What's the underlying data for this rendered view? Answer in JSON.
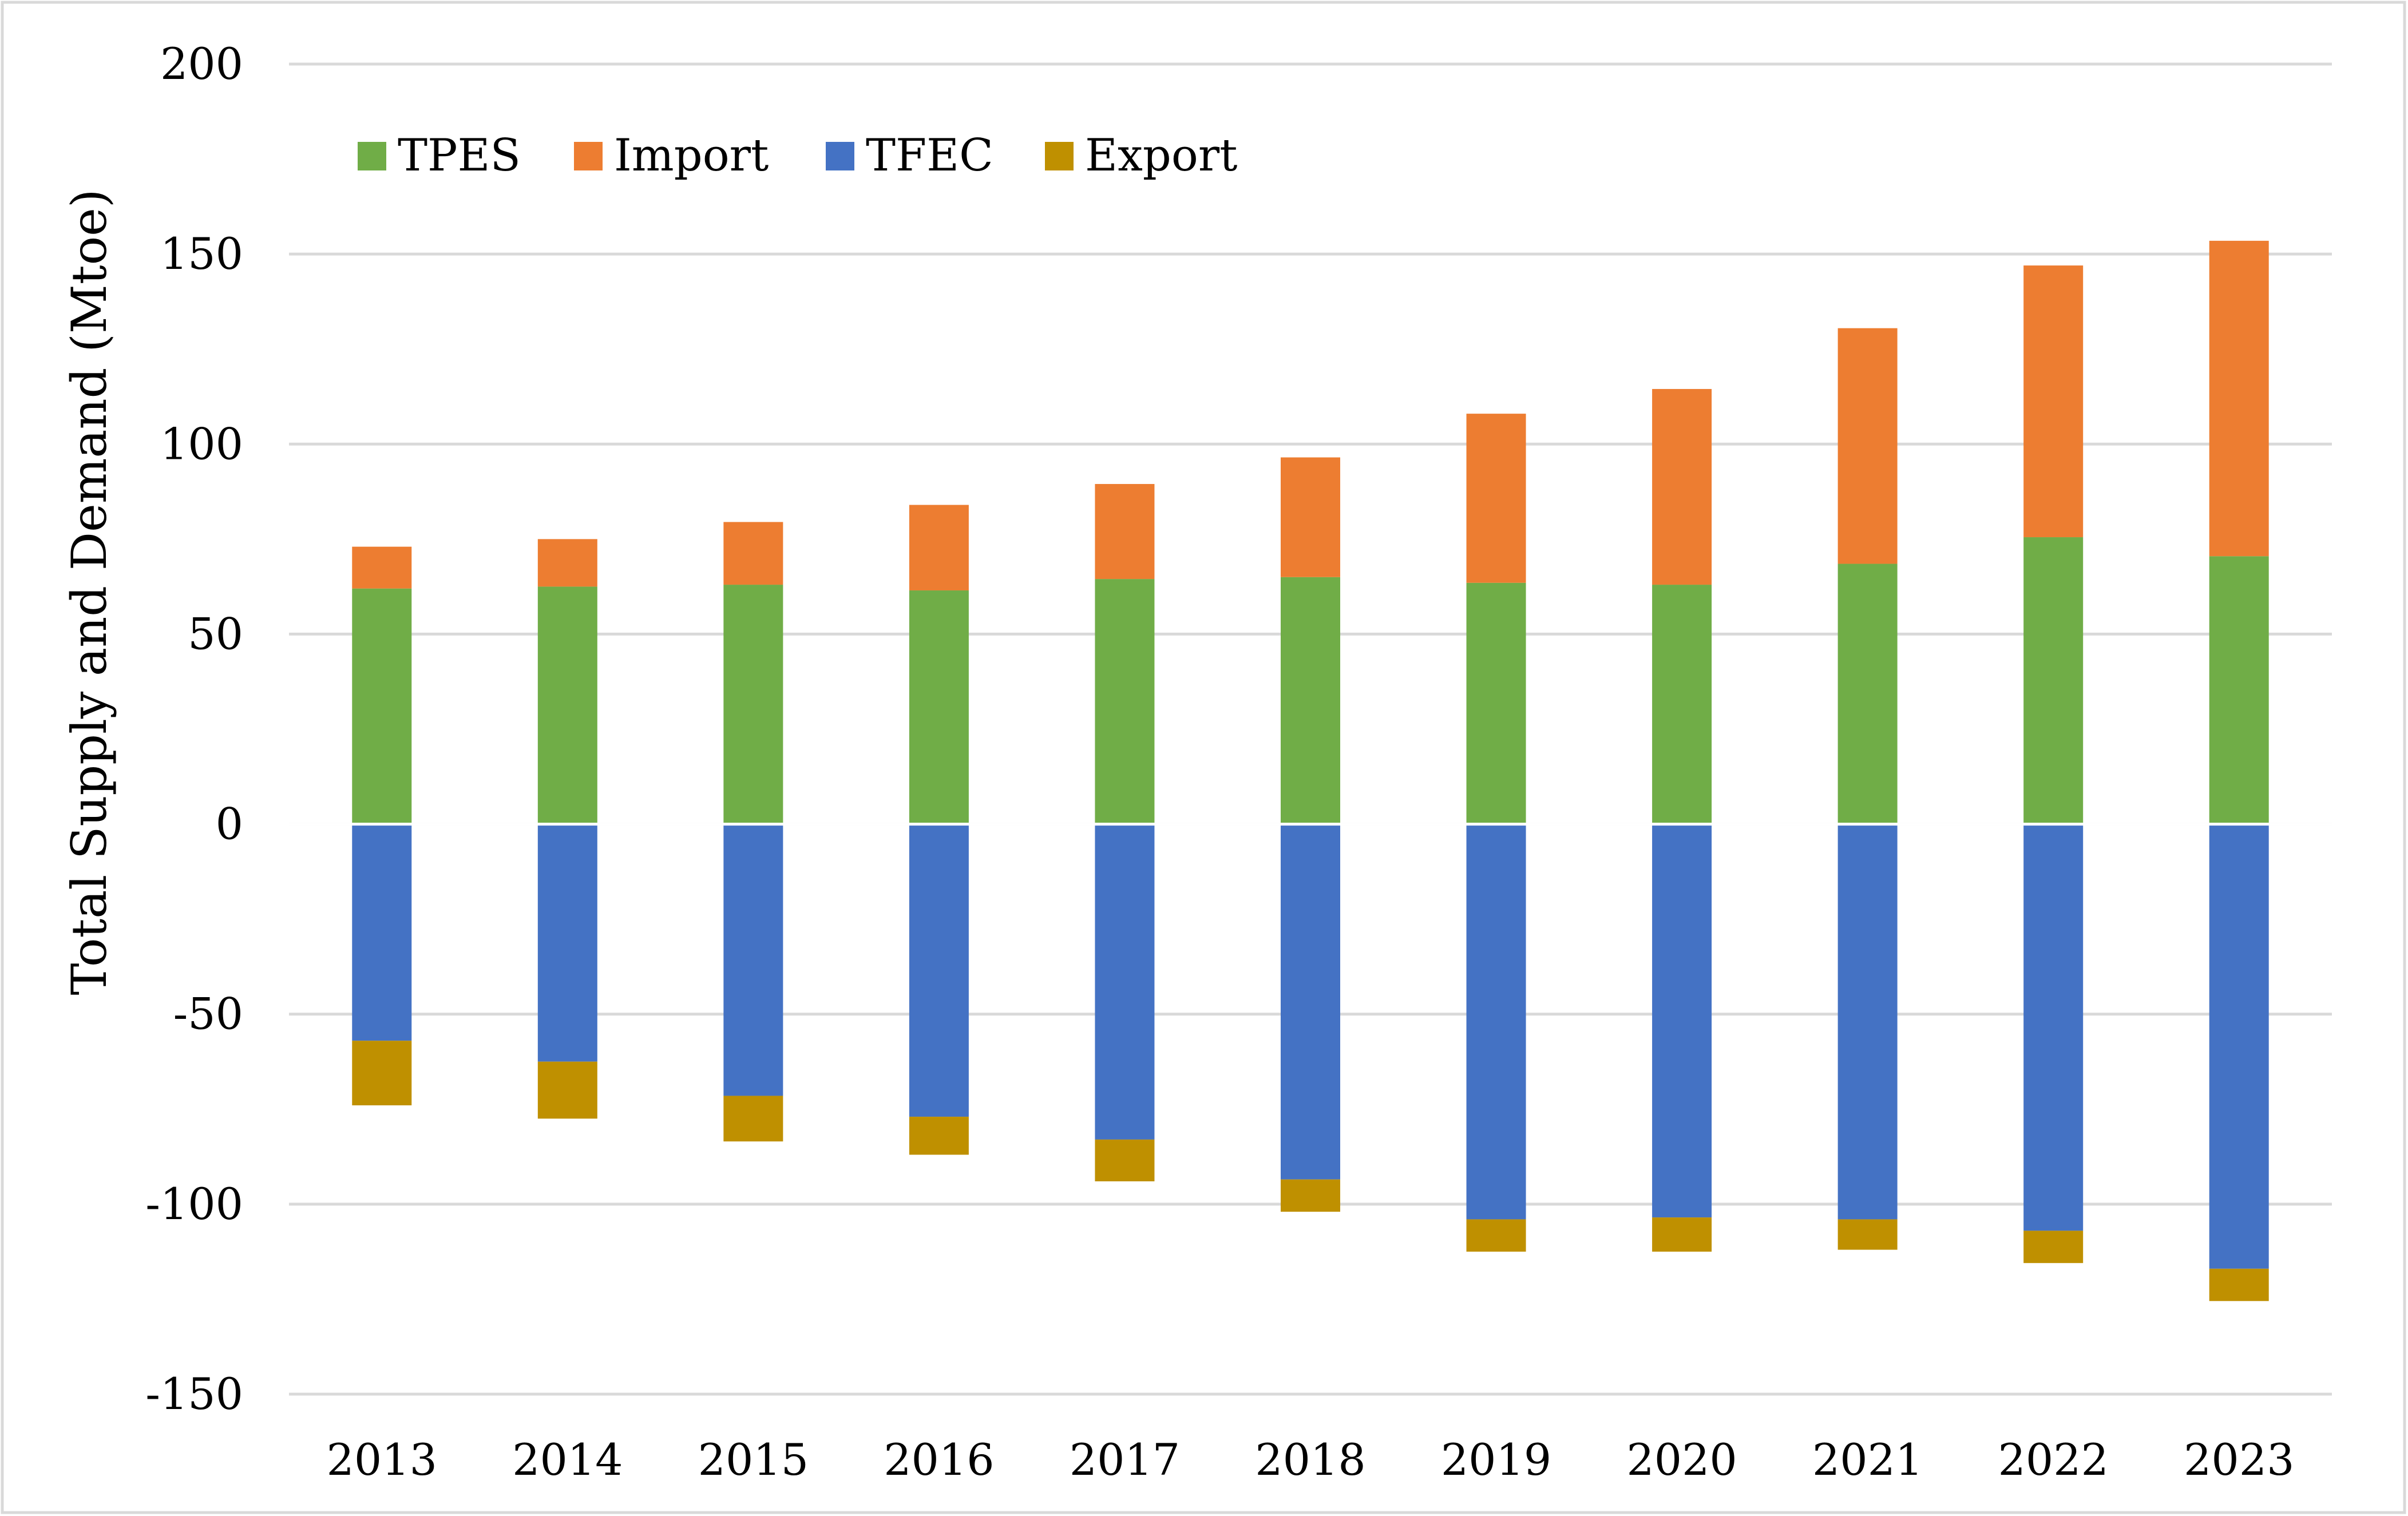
{
  "chart_data": {
    "type": "bar",
    "stacked": true,
    "title": "",
    "xlabel": "",
    "ylabel": "Total Supply and Demand (Mtoe)",
    "ylim": [
      -150,
      200
    ],
    "yticks": [
      200,
      150,
      100,
      50,
      0,
      -50,
      -100,
      -150
    ],
    "grid": true,
    "legend_position": "top-left",
    "categories": [
      "2013",
      "2014",
      "2015",
      "2016",
      "2017",
      "2018",
      "2019",
      "2020",
      "2021",
      "2022",
      "2023"
    ],
    "series": [
      {
        "name": "TPES",
        "color": "#70ad47",
        "values": [
          62,
          62.5,
          63,
          61.5,
          64.5,
          65,
          63.5,
          63,
          68.5,
          75.5,
          70.5
        ]
      },
      {
        "name": "Import",
        "color": "#ed7d31",
        "values": [
          11,
          12.5,
          16.5,
          22.5,
          25,
          31.5,
          44.5,
          51.5,
          62,
          71.5,
          83
        ]
      },
      {
        "name": "TFEC",
        "color": "#4472c4",
        "values": [
          -57,
          -62.5,
          -71.5,
          -77,
          -83,
          -93.5,
          -104,
          -103.5,
          -104,
          -107,
          -117
        ]
      },
      {
        "name": "Export",
        "color": "#bf9000",
        "values": [
          -17,
          -15,
          -12,
          -10,
          -11,
          -8.5,
          -8.5,
          -9,
          -8,
          -8.5,
          -8.5
        ]
      }
    ]
  }
}
